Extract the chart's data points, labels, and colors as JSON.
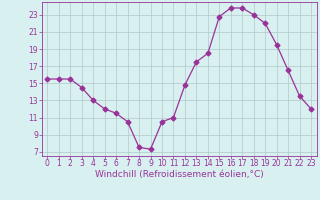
{
  "x": [
    0,
    1,
    2,
    3,
    4,
    5,
    6,
    7,
    8,
    9,
    10,
    11,
    12,
    13,
    14,
    15,
    16,
    17,
    18,
    19,
    20,
    21,
    22,
    23
  ],
  "y": [
    15.5,
    15.5,
    15.5,
    14.5,
    13.0,
    12.0,
    11.5,
    10.5,
    7.5,
    7.3,
    10.5,
    11.0,
    14.8,
    17.5,
    18.5,
    22.8,
    23.8,
    23.8,
    23.0,
    22.0,
    19.5,
    16.5,
    13.5,
    12.0
  ],
  "line_color": "#993399",
  "marker": "D",
  "markersize": 2.5,
  "bg_color": "#d9f0f0",
  "grid_color": "#b0c8c8",
  "xlabel": "Windchill (Refroidissement éolien,°C)",
  "yticks": [
    7,
    9,
    11,
    13,
    15,
    17,
    19,
    21,
    23
  ],
  "xticks": [
    0,
    1,
    2,
    3,
    4,
    5,
    6,
    7,
    8,
    9,
    10,
    11,
    12,
    13,
    14,
    15,
    16,
    17,
    18,
    19,
    20,
    21,
    22,
    23
  ],
  "ylim": [
    6.5,
    24.5
  ],
  "xlim": [
    -0.5,
    23.5
  ],
  "tick_color": "#993399",
  "label_color": "#993399",
  "axis_color": "#993399",
  "xlabel_fontsize": 6.5,
  "tick_fontsize": 5.5
}
